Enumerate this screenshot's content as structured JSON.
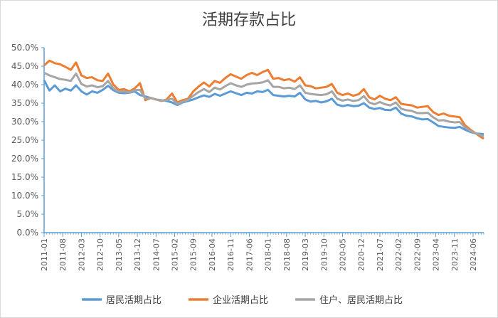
{
  "chart_data": {
    "type": "line",
    "title": "活期存款占比",
    "xlabel": "",
    "ylabel": "",
    "ylim": [
      0,
      0.5
    ],
    "ytick_labels": [
      "0.0%",
      "5.0%",
      "10.0%",
      "15.0%",
      "20.0%",
      "25.0%",
      "30.0%",
      "35.0%",
      "40.0%",
      "45.0%",
      "50.0%"
    ],
    "x_start": "2011-01",
    "x_end": "2024-10",
    "xtick_labels": [
      "2011-01",
      "2011-08",
      "2012-03",
      "2012-10",
      "2013-05",
      "2013-12",
      "2014-07",
      "2015-02",
      "2015-09",
      "2016-04",
      "2016-11",
      "2017-06",
      "2018-01",
      "2018-08",
      "2019-03",
      "2019-10",
      "2020-05",
      "2020-12",
      "2021-07",
      "2022-02",
      "2022-09",
      "2023-04",
      "2023-11",
      "2024-06"
    ],
    "grid": false,
    "legend": "bottom",
    "series": [
      {
        "name": "居民活期占比",
        "color": "#5B9BD5",
        "points": [
          [
            "2011-01",
            0.412
          ],
          [
            "2011-03",
            0.384
          ],
          [
            "2011-05",
            0.398
          ],
          [
            "2011-07",
            0.382
          ],
          [
            "2011-09",
            0.389
          ],
          [
            "2011-11",
            0.384
          ],
          [
            "2012-01",
            0.398
          ],
          [
            "2012-03",
            0.382
          ],
          [
            "2012-05",
            0.373
          ],
          [
            "2012-07",
            0.382
          ],
          [
            "2012-09",
            0.378
          ],
          [
            "2012-11",
            0.386
          ],
          [
            "2013-01",
            0.397
          ],
          [
            "2013-03",
            0.385
          ],
          [
            "2013-05",
            0.378
          ],
          [
            "2013-07",
            0.377
          ],
          [
            "2013-09",
            0.378
          ],
          [
            "2013-11",
            0.382
          ],
          [
            "2014-01",
            0.372
          ],
          [
            "2014-03",
            0.368
          ],
          [
            "2014-05",
            0.364
          ],
          [
            "2014-07",
            0.36
          ],
          [
            "2014-09",
            0.358
          ],
          [
            "2014-11",
            0.356
          ],
          [
            "2015-01",
            0.352
          ],
          [
            "2015-03",
            0.345
          ],
          [
            "2015-05",
            0.352
          ],
          [
            "2015-07",
            0.356
          ],
          [
            "2015-09",
            0.36
          ],
          [
            "2015-11",
            0.366
          ],
          [
            "2016-01",
            0.371
          ],
          [
            "2016-03",
            0.367
          ],
          [
            "2016-05",
            0.375
          ],
          [
            "2016-07",
            0.37
          ],
          [
            "2016-09",
            0.376
          ],
          [
            "2016-11",
            0.382
          ],
          [
            "2017-01",
            0.377
          ],
          [
            "2017-03",
            0.372
          ],
          [
            "2017-05",
            0.378
          ],
          [
            "2017-07",
            0.376
          ],
          [
            "2017-09",
            0.382
          ],
          [
            "2017-11",
            0.38
          ],
          [
            "2018-01",
            0.386
          ],
          [
            "2018-03",
            0.372
          ],
          [
            "2018-05",
            0.37
          ],
          [
            "2018-07",
            0.368
          ],
          [
            "2018-09",
            0.37
          ],
          [
            "2018-11",
            0.368
          ],
          [
            "2019-01",
            0.378
          ],
          [
            "2019-03",
            0.36
          ],
          [
            "2019-05",
            0.354
          ],
          [
            "2019-07",
            0.356
          ],
          [
            "2019-09",
            0.352
          ],
          [
            "2019-11",
            0.355
          ],
          [
            "2020-01",
            0.362
          ],
          [
            "2020-03",
            0.346
          ],
          [
            "2020-05",
            0.342
          ],
          [
            "2020-07",
            0.345
          ],
          [
            "2020-09",
            0.342
          ],
          [
            "2020-11",
            0.343
          ],
          [
            "2021-01",
            0.35
          ],
          [
            "2021-03",
            0.338
          ],
          [
            "2021-05",
            0.334
          ],
          [
            "2021-07",
            0.337
          ],
          [
            "2021-09",
            0.332
          ],
          [
            "2021-11",
            0.331
          ],
          [
            "2022-01",
            0.338
          ],
          [
            "2022-03",
            0.322
          ],
          [
            "2022-05",
            0.316
          ],
          [
            "2022-07",
            0.314
          ],
          [
            "2022-09",
            0.309
          ],
          [
            "2022-11",
            0.306
          ],
          [
            "2023-01",
            0.307
          ],
          [
            "2023-03",
            0.298
          ],
          [
            "2023-05",
            0.288
          ],
          [
            "2023-07",
            0.286
          ],
          [
            "2023-09",
            0.284
          ],
          [
            "2023-11",
            0.283
          ],
          [
            "2024-01",
            0.286
          ],
          [
            "2024-03",
            0.278
          ],
          [
            "2024-05",
            0.272
          ],
          [
            "2024-07",
            0.268
          ],
          [
            "2024-09",
            0.267
          ],
          [
            "2024-10",
            0.266
          ]
        ]
      },
      {
        "name": "企业活期占比",
        "color": "#ED7D31",
        "points": [
          [
            "2011-01",
            0.452
          ],
          [
            "2011-03",
            0.465
          ],
          [
            "2011-05",
            0.458
          ],
          [
            "2011-07",
            0.455
          ],
          [
            "2011-09",
            0.448
          ],
          [
            "2011-11",
            0.44
          ],
          [
            "2012-01",
            0.46
          ],
          [
            "2012-03",
            0.425
          ],
          [
            "2012-05",
            0.418
          ],
          [
            "2012-07",
            0.42
          ],
          [
            "2012-09",
            0.412
          ],
          [
            "2012-11",
            0.41
          ],
          [
            "2013-01",
            0.43
          ],
          [
            "2013-03",
            0.4
          ],
          [
            "2013-05",
            0.386
          ],
          [
            "2013-07",
            0.388
          ],
          [
            "2013-09",
            0.382
          ],
          [
            "2013-11",
            0.39
          ],
          [
            "2014-01",
            0.404
          ],
          [
            "2014-03",
            0.358
          ],
          [
            "2014-05",
            0.364
          ],
          [
            "2014-07",
            0.36
          ],
          [
            "2014-09",
            0.356
          ],
          [
            "2014-11",
            0.36
          ],
          [
            "2015-01",
            0.376
          ],
          [
            "2015-03",
            0.352
          ],
          [
            "2015-05",
            0.358
          ],
          [
            "2015-07",
            0.362
          ],
          [
            "2015-09",
            0.382
          ],
          [
            "2015-11",
            0.395
          ],
          [
            "2016-01",
            0.406
          ],
          [
            "2016-03",
            0.395
          ],
          [
            "2016-05",
            0.41
          ],
          [
            "2016-07",
            0.405
          ],
          [
            "2016-09",
            0.418
          ],
          [
            "2016-11",
            0.428
          ],
          [
            "2017-01",
            0.422
          ],
          [
            "2017-03",
            0.416
          ],
          [
            "2017-05",
            0.426
          ],
          [
            "2017-07",
            0.432
          ],
          [
            "2017-09",
            0.426
          ],
          [
            "2017-11",
            0.434
          ],
          [
            "2018-01",
            0.44
          ],
          [
            "2018-03",
            0.416
          ],
          [
            "2018-05",
            0.418
          ],
          [
            "2018-07",
            0.412
          ],
          [
            "2018-09",
            0.415
          ],
          [
            "2018-11",
            0.408
          ],
          [
            "2019-01",
            0.42
          ],
          [
            "2019-03",
            0.398
          ],
          [
            "2019-05",
            0.396
          ],
          [
            "2019-07",
            0.39
          ],
          [
            "2019-09",
            0.392
          ],
          [
            "2019-11",
            0.394
          ],
          [
            "2020-01",
            0.402
          ],
          [
            "2020-03",
            0.378
          ],
          [
            "2020-05",
            0.372
          ],
          [
            "2020-07",
            0.376
          ],
          [
            "2020-09",
            0.37
          ],
          [
            "2020-11",
            0.374
          ],
          [
            "2021-01",
            0.388
          ],
          [
            "2021-03",
            0.366
          ],
          [
            "2021-05",
            0.36
          ],
          [
            "2021-07",
            0.37
          ],
          [
            "2021-09",
            0.362
          ],
          [
            "2021-11",
            0.358
          ],
          [
            "2022-01",
            0.366
          ],
          [
            "2022-03",
            0.348
          ],
          [
            "2022-05",
            0.346
          ],
          [
            "2022-07",
            0.344
          ],
          [
            "2022-09",
            0.338
          ],
          [
            "2022-11",
            0.34
          ],
          [
            "2023-01",
            0.342
          ],
          [
            "2023-03",
            0.326
          ],
          [
            "2023-05",
            0.318
          ],
          [
            "2023-07",
            0.322
          ],
          [
            "2023-09",
            0.316
          ],
          [
            "2023-11",
            0.314
          ],
          [
            "2024-01",
            0.312
          ],
          [
            "2024-03",
            0.29
          ],
          [
            "2024-05",
            0.278
          ],
          [
            "2024-07",
            0.268
          ],
          [
            "2024-09",
            0.258
          ],
          [
            "2024-10",
            0.254
          ]
        ]
      },
      {
        "name": "住户、居民活期占比",
        "color": "#A5A5A5",
        "points": [
          [
            "2011-01",
            0.432
          ],
          [
            "2011-03",
            0.425
          ],
          [
            "2011-05",
            0.42
          ],
          [
            "2011-07",
            0.415
          ],
          [
            "2011-09",
            0.413
          ],
          [
            "2011-11",
            0.41
          ],
          [
            "2012-01",
            0.43
          ],
          [
            "2012-03",
            0.402
          ],
          [
            "2012-05",
            0.395
          ],
          [
            "2012-07",
            0.398
          ],
          [
            "2012-09",
            0.393
          ],
          [
            "2012-11",
            0.396
          ],
          [
            "2013-01",
            0.41
          ],
          [
            "2013-03",
            0.39
          ],
          [
            "2013-05",
            0.381
          ],
          [
            "2013-07",
            0.382
          ],
          [
            "2013-09",
            0.379
          ],
          [
            "2013-11",
            0.385
          ],
          [
            "2014-01",
            0.386
          ],
          [
            "2014-03",
            0.362
          ],
          [
            "2014-05",
            0.364
          ],
          [
            "2014-07",
            0.36
          ],
          [
            "2014-09",
            0.357
          ],
          [
            "2014-11",
            0.358
          ],
          [
            "2015-01",
            0.362
          ],
          [
            "2015-03",
            0.348
          ],
          [
            "2015-05",
            0.354
          ],
          [
            "2015-07",
            0.359
          ],
          [
            "2015-09",
            0.37
          ],
          [
            "2015-11",
            0.38
          ],
          [
            "2016-01",
            0.388
          ],
          [
            "2016-03",
            0.38
          ],
          [
            "2016-05",
            0.392
          ],
          [
            "2016-07",
            0.387
          ],
          [
            "2016-09",
            0.396
          ],
          [
            "2016-11",
            0.404
          ],
          [
            "2017-01",
            0.398
          ],
          [
            "2017-03",
            0.394
          ],
          [
            "2017-05",
            0.4
          ],
          [
            "2017-07",
            0.403
          ],
          [
            "2017-09",
            0.404
          ],
          [
            "2017-11",
            0.406
          ],
          [
            "2018-01",
            0.412
          ],
          [
            "2018-03",
            0.394
          ],
          [
            "2018-05",
            0.394
          ],
          [
            "2018-07",
            0.39
          ],
          [
            "2018-09",
            0.392
          ],
          [
            "2018-11",
            0.388
          ],
          [
            "2019-01",
            0.398
          ],
          [
            "2019-03",
            0.378
          ],
          [
            "2019-05",
            0.375
          ],
          [
            "2019-07",
            0.373
          ],
          [
            "2019-09",
            0.372
          ],
          [
            "2019-11",
            0.374
          ],
          [
            "2020-01",
            0.382
          ],
          [
            "2020-03",
            0.362
          ],
          [
            "2020-05",
            0.357
          ],
          [
            "2020-07",
            0.36
          ],
          [
            "2020-09",
            0.356
          ],
          [
            "2020-11",
            0.358
          ],
          [
            "2021-01",
            0.369
          ],
          [
            "2021-03",
            0.352
          ],
          [
            "2021-05",
            0.347
          ],
          [
            "2021-07",
            0.353
          ],
          [
            "2021-09",
            0.347
          ],
          [
            "2021-11",
            0.344
          ],
          [
            "2022-01",
            0.352
          ],
          [
            "2022-03",
            0.335
          ],
          [
            "2022-05",
            0.331
          ],
          [
            "2022-07",
            0.329
          ],
          [
            "2022-09",
            0.323
          ],
          [
            "2022-11",
            0.323
          ],
          [
            "2023-01",
            0.324
          ],
          [
            "2023-03",
            0.312
          ],
          [
            "2023-05",
            0.303
          ],
          [
            "2023-07",
            0.304
          ],
          [
            "2023-09",
            0.3
          ],
          [
            "2023-11",
            0.298
          ],
          [
            "2024-01",
            0.299
          ],
          [
            "2024-03",
            0.284
          ],
          [
            "2024-05",
            0.275
          ],
          [
            "2024-07",
            0.268
          ],
          [
            "2024-09",
            0.263
          ],
          [
            "2024-10",
            0.26
          ]
        ]
      }
    ]
  }
}
